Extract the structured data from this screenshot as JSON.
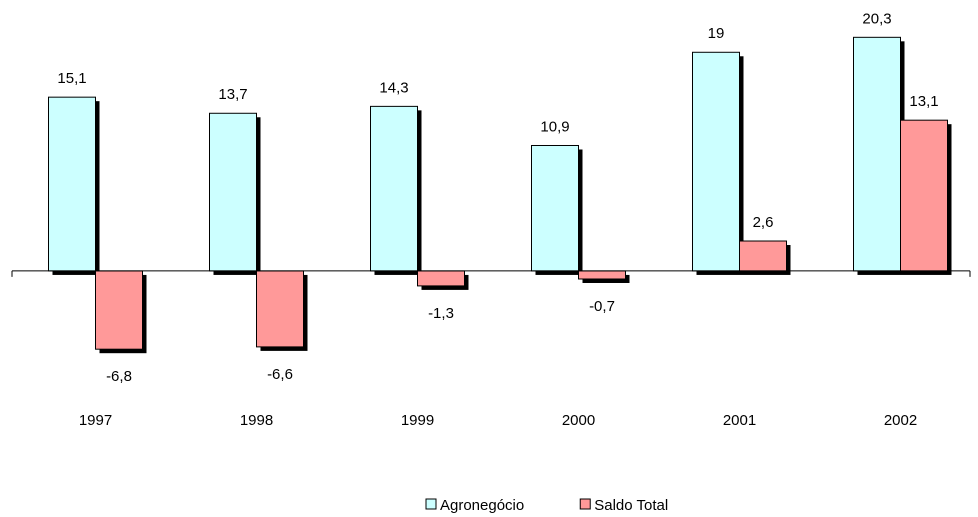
{
  "chart_data": {
    "type": "bar",
    "categories": [
      "1997",
      "1998",
      "1999",
      "2000",
      "2001",
      "2002"
    ],
    "series": [
      {
        "name": "Agronegócio",
        "color": "#ccffff",
        "values": [
          15.1,
          13.7,
          14.3,
          10.9,
          19,
          20.3
        ],
        "value_labels": [
          "15,1",
          "13,7",
          "14,3",
          "10,9",
          "19",
          "20,3"
        ]
      },
      {
        "name": "Saldo Total",
        "color": "#ff9999",
        "values": [
          -6.8,
          -6.6,
          -1.3,
          -0.7,
          2.6,
          13.1
        ],
        "value_labels": [
          "-6,8",
          "-6,6",
          "-1,3",
          "-0,7",
          "2,6",
          "13,1"
        ]
      }
    ],
    "ylim": [
      -8,
      22.5
    ],
    "grid": false,
    "legend": "bottom"
  }
}
